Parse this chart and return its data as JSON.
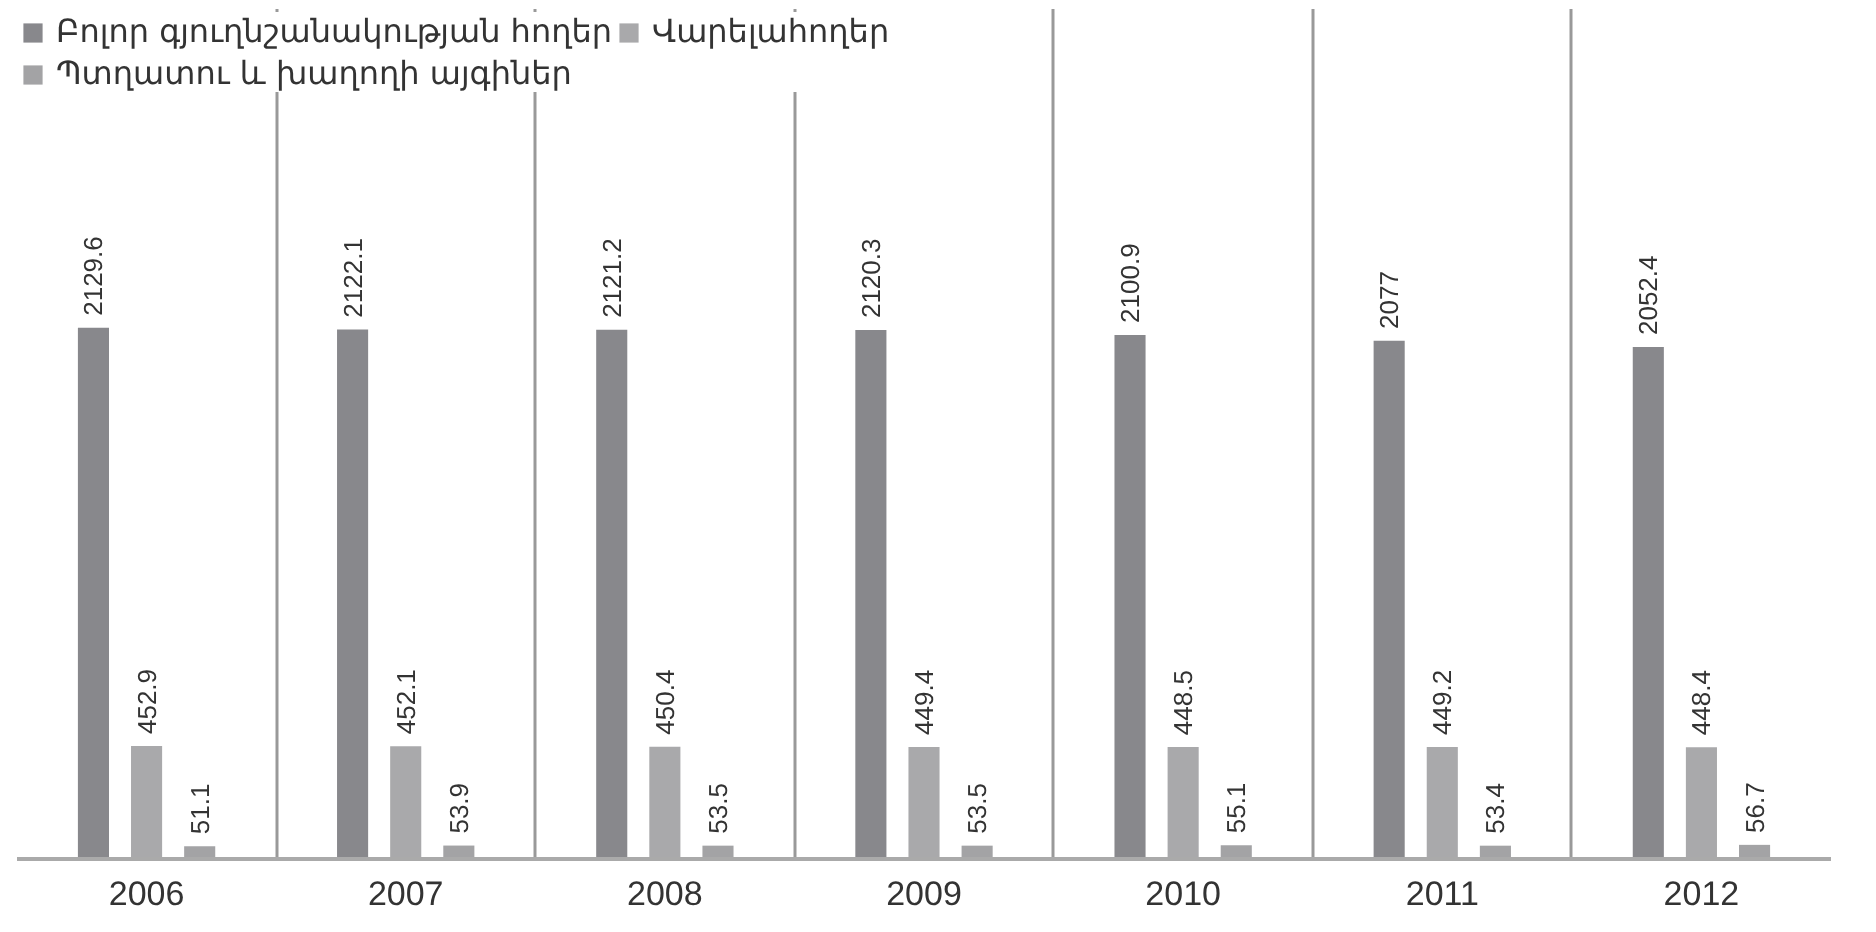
{
  "chart_data": {
    "type": "bar",
    "categories": [
      "2006",
      "2007",
      "2008",
      "2009",
      "2010",
      "2011",
      "2012"
    ],
    "series": [
      {
        "name": "Բոլոր գյուղնշանակության հողեր",
        "color": "#88888c",
        "values": [
          2129.6,
          2122.1,
          2121.2,
          2120.3,
          2100.9,
          2077,
          2052.4
        ]
      },
      {
        "name": "Վարելահողեր",
        "color": "#a9a9ab",
        "values": [
          452.9,
          452.1,
          450.4,
          449.4,
          448.5,
          449.2,
          448.4
        ]
      },
      {
        "name": "Պտղատու և խաղողի այգիներ",
        "color": "#a3a3a5",
        "values": [
          51.1,
          53.9,
          53.5,
          53.5,
          55.1,
          53.4,
          56.7
        ]
      }
    ],
    "data_labels": true,
    "legend": "top",
    "grid": "x"
  }
}
